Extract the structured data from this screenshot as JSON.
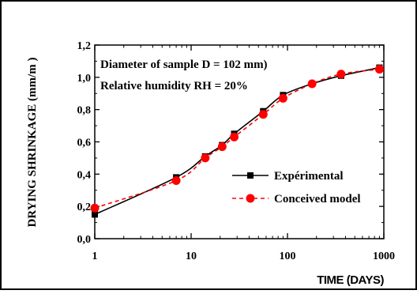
{
  "chart_data": {
    "type": "line",
    "x_scale": "log",
    "xlim": [
      1,
      1000
    ],
    "ylim": [
      0.0,
      1.2
    ],
    "xlabel": "TIME (DAYS)",
    "ylabel": "DRYING SHRINKAGE (mm/m )",
    "x_ticks": [
      {
        "value": 1,
        "label": "1"
      },
      {
        "value": 10,
        "label": "10"
      },
      {
        "value": 100,
        "label": "100"
      },
      {
        "value": 1000,
        "label": "1000"
      }
    ],
    "y_ticks": [
      {
        "value": 0.0,
        "label": "0,0"
      },
      {
        "value": 0.2,
        "label": "0,2"
      },
      {
        "value": 0.4,
        "label": "0,4"
      },
      {
        "value": 0.6,
        "label": "0,6"
      },
      {
        "value": 0.8,
        "label": "0,8"
      },
      {
        "value": 1.0,
        "label": "1,0"
      },
      {
        "value": 1.2,
        "label": "1,2"
      }
    ],
    "annotations": [
      "Diameter of sample D = 102 mm)",
      "Relative humidity RH = 20%"
    ],
    "legend_position": "lower-right",
    "grid": false,
    "series": [
      {
        "name": "Expérimental",
        "color": "#000000",
        "marker": "square",
        "line": "solid",
        "x": [
          1,
          7,
          14,
          21,
          28,
          56,
          90,
          180,
          360,
          900
        ],
        "y": [
          0.15,
          0.38,
          0.51,
          0.58,
          0.65,
          0.79,
          0.89,
          0.96,
          1.01,
          1.06
        ]
      },
      {
        "name": "Conceived model",
        "color": "#ff0000",
        "marker": "circle",
        "line": "dashed",
        "x": [
          1,
          7,
          14,
          21,
          28,
          56,
          90,
          180,
          360,
          900
        ],
        "y": [
          0.19,
          0.36,
          0.5,
          0.57,
          0.63,
          0.77,
          0.87,
          0.96,
          1.02,
          1.05
        ]
      }
    ]
  }
}
